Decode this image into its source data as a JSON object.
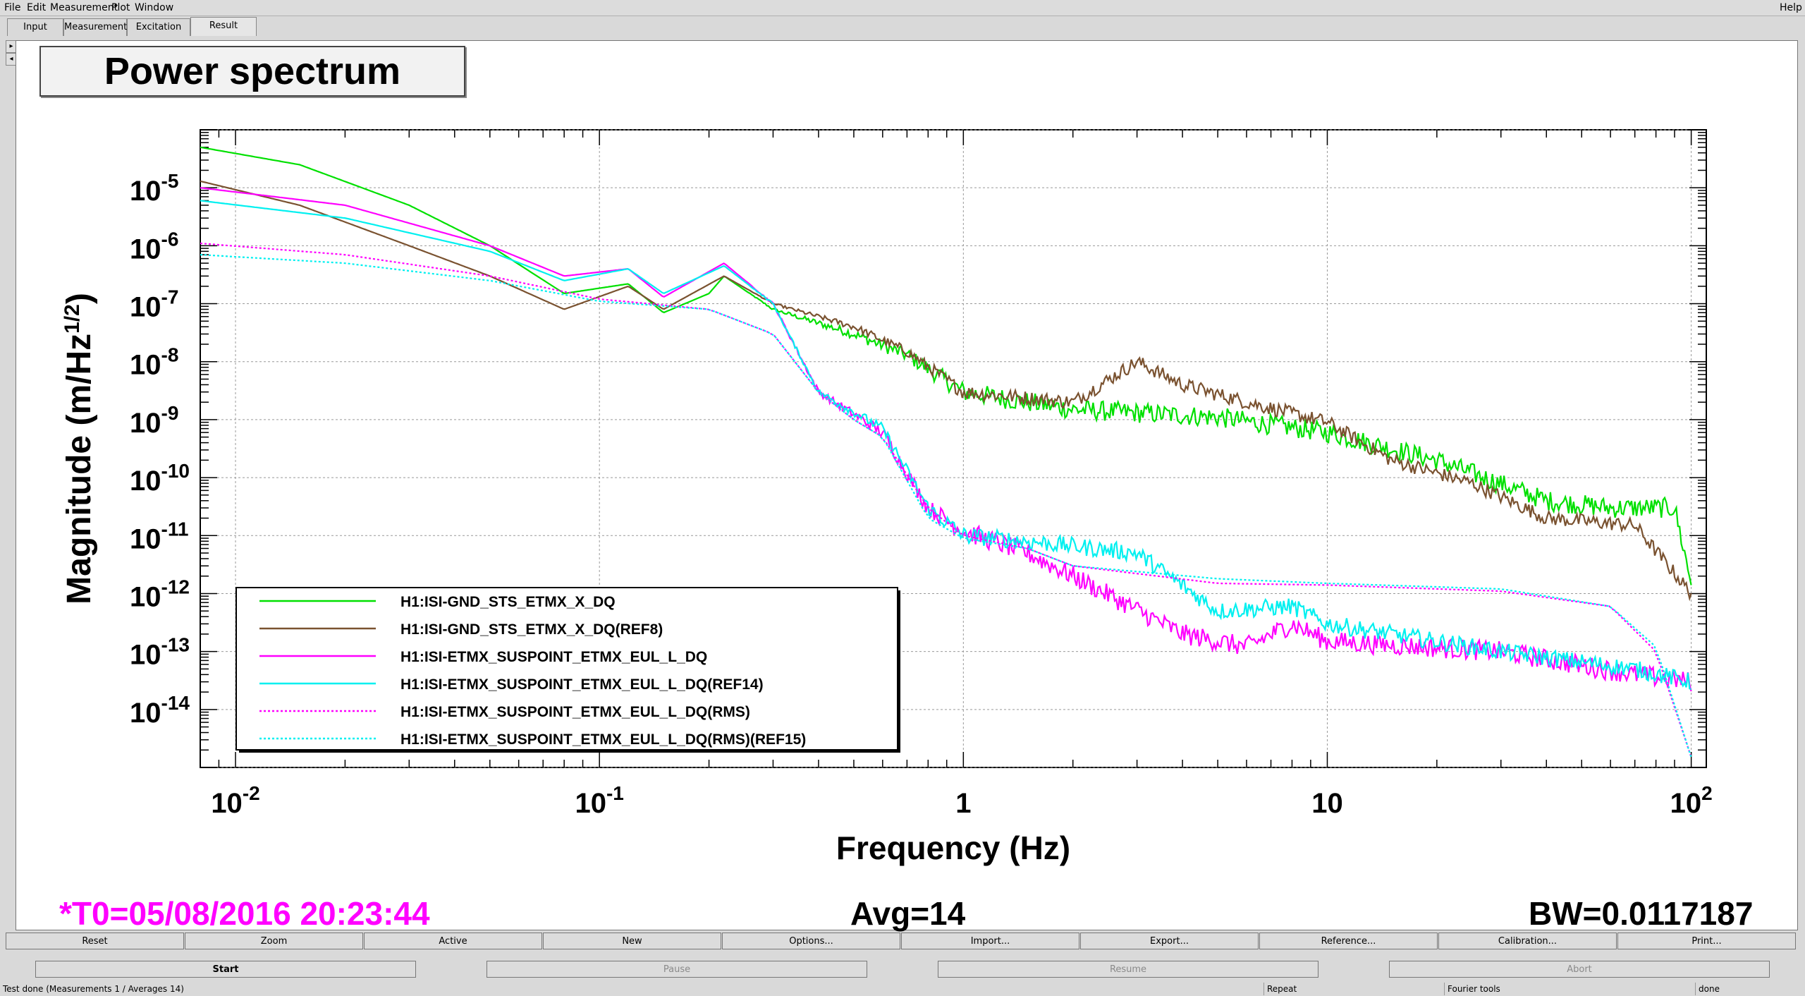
{
  "menu": {
    "file": "File",
    "edit": "Edit",
    "measurement": "Measurement",
    "plot": "Plot",
    "window": "Window",
    "help": "Help"
  },
  "tabs": [
    "Input",
    "Measurement",
    "Excitation",
    "Result"
  ],
  "panel_title": "Power spectrum",
  "footer": {
    "t0": "*T0=05/08/2016 20:23:44",
    "avg": "Avg=14",
    "bw": "BW=0.0117187"
  },
  "toolbar": [
    "Reset",
    "Zoom",
    "Active",
    "New",
    "Options...",
    "Import...",
    "Export...",
    "Reference...",
    "Calibration...",
    "Print..."
  ],
  "controls": {
    "start": "Start",
    "pause": "Pause",
    "resume": "Resume",
    "abort": "Abort"
  },
  "status": {
    "message": "Test done (Measurements 1 / Averages 14)",
    "repeat": "Repeat",
    "tools": "Fourier tools",
    "state": "done"
  },
  "colors": {
    "green": "#00e000",
    "brown": "#7a5230",
    "magenta": "#ff00ff",
    "cyan": "#00f0f0",
    "t0": "#ff00ff"
  },
  "chart_data": {
    "type": "line",
    "xlabel": "Frequency (Hz)",
    "ylabel": "Magnitude (m/Hz^1/2)",
    "xscale": "log",
    "yscale": "log",
    "xlim": [
      0.008,
      110
    ],
    "ylim": [
      1e-15,
      0.0001
    ],
    "grid": true,
    "legend_position": "bottom-left",
    "x_ticks": [
      {
        "v": 0.01,
        "b": "10",
        "e": "-2"
      },
      {
        "v": 0.1,
        "b": "10",
        "e": "-1"
      },
      {
        "v": 1,
        "b": "1",
        "e": ""
      },
      {
        "v": 10,
        "b": "10",
        "e": ""
      },
      {
        "v": 100,
        "b": "10",
        "e": "2"
      }
    ],
    "y_ticks": [
      {
        "v": 1e-05,
        "b": "10",
        "e": "-5"
      },
      {
        "v": 1e-06,
        "b": "10",
        "e": "-6"
      },
      {
        "v": 1e-07,
        "b": "10",
        "e": "-7"
      },
      {
        "v": 1e-08,
        "b": "10",
        "e": "-8"
      },
      {
        "v": 1e-09,
        "b": "10",
        "e": "-9"
      },
      {
        "v": 1e-10,
        "b": "10",
        "e": "-10"
      },
      {
        "v": 1e-11,
        "b": "10",
        "e": "-11"
      },
      {
        "v": 1e-12,
        "b": "10",
        "e": "-12"
      },
      {
        "v": 1e-13,
        "b": "10",
        "e": "-13"
      },
      {
        "v": 1e-14,
        "b": "10",
        "e": "-14"
      }
    ],
    "series": [
      {
        "name": "H1:ISI-GND_STS_ETMX_X_DQ",
        "color": "#00e000",
        "dash": false,
        "noise": 0.35,
        "points": [
          [
            0.008,
            5e-05
          ],
          [
            0.015,
            2.5e-05
          ],
          [
            0.03,
            5e-06
          ],
          [
            0.05,
            1e-06
          ],
          [
            0.08,
            1.5e-07
          ],
          [
            0.12,
            2.2e-07
          ],
          [
            0.15,
            7e-08
          ],
          [
            0.2,
            1.5e-07
          ],
          [
            0.22,
            3e-07
          ],
          [
            0.3,
            8e-08
          ],
          [
            0.5,
            3e-08
          ],
          [
            0.7,
            1.3e-08
          ],
          [
            1,
            3e-09
          ],
          [
            2,
            1.5e-09
          ],
          [
            5,
            1.1e-09
          ],
          [
            10,
            6e-10
          ],
          [
            20,
            2e-10
          ],
          [
            40,
            4e-11
          ],
          [
            60,
            3e-11
          ],
          [
            90,
            3e-11
          ],
          [
            100,
            1.5e-12
          ]
        ]
      },
      {
        "name": "H1:ISI-GND_STS_ETMX_X_DQ(REF8)",
        "color": "#7a5230",
        "dash": false,
        "noise": 0.25,
        "points": [
          [
            0.008,
            1.3e-05
          ],
          [
            0.015,
            5e-06
          ],
          [
            0.03,
            1e-06
          ],
          [
            0.05,
            3e-07
          ],
          [
            0.08,
            8e-08
          ],
          [
            0.12,
            2e-07
          ],
          [
            0.15,
            8e-08
          ],
          [
            0.22,
            3e-07
          ],
          [
            0.3,
            1e-07
          ],
          [
            0.5,
            4e-08
          ],
          [
            0.7,
            1.5e-08
          ],
          [
            1,
            3e-09
          ],
          [
            2,
            2e-09
          ],
          [
            3,
            1e-08
          ],
          [
            4,
            4e-09
          ],
          [
            6,
            2e-09
          ],
          [
            10,
            9e-10
          ],
          [
            15,
            2e-10
          ],
          [
            25,
            8e-11
          ],
          [
            40,
            2e-11
          ],
          [
            70,
            1.5e-11
          ],
          [
            100,
            1e-12
          ]
        ]
      },
      {
        "name": "H1:ISI-ETMX_SUSPOINT_ETMX_EUL_L_DQ",
        "color": "#ff00ff",
        "dash": false,
        "noise": 0.35,
        "points": [
          [
            0.008,
            1e-05
          ],
          [
            0.02,
            5e-06
          ],
          [
            0.05,
            1e-06
          ],
          [
            0.08,
            3e-07
          ],
          [
            0.12,
            4e-07
          ],
          [
            0.15,
            1.3e-07
          ],
          [
            0.22,
            5e-07
          ],
          [
            0.3,
            1e-07
          ],
          [
            0.4,
            3e-09
          ],
          [
            0.6,
            6e-10
          ],
          [
            0.8,
            3e-11
          ],
          [
            1,
            1.2e-11
          ],
          [
            1.5,
            5e-12
          ],
          [
            2,
            2e-12
          ],
          [
            4,
            2e-13
          ],
          [
            6,
            1.2e-13
          ],
          [
            8,
            3e-13
          ],
          [
            10,
            1.5e-13
          ],
          [
            30,
            1e-13
          ],
          [
            70,
            4e-14
          ],
          [
            100,
            3e-14
          ]
        ]
      },
      {
        "name": "H1:ISI-ETMX_SUSPOINT_ETMX_EUL_L_DQ(REF14)",
        "color": "#00f0f0",
        "dash": false,
        "noise": 0.3,
        "points": [
          [
            0.008,
            6e-06
          ],
          [
            0.02,
            3e-06
          ],
          [
            0.05,
            8e-07
          ],
          [
            0.08,
            2.5e-07
          ],
          [
            0.12,
            4e-07
          ],
          [
            0.15,
            1.5e-07
          ],
          [
            0.22,
            4.5e-07
          ],
          [
            0.3,
            1e-07
          ],
          [
            0.4,
            3e-09
          ],
          [
            0.6,
            7e-10
          ],
          [
            0.8,
            3e-11
          ],
          [
            1,
            1e-11
          ],
          [
            1.5,
            8e-12
          ],
          [
            3,
            5e-12
          ],
          [
            5,
            5e-13
          ],
          [
            8,
            6e-13
          ],
          [
            10,
            3e-13
          ],
          [
            30,
            1e-13
          ],
          [
            70,
            5e-14
          ],
          [
            100,
            3e-14
          ]
        ]
      },
      {
        "name": "H1:ISI-ETMX_SUSPOINT_ETMX_EUL_L_DQ(RMS)",
        "color": "#ff00ff",
        "dash": true,
        "noise": 0,
        "points": [
          [
            0.008,
            1.1e-06
          ],
          [
            0.02,
            7e-07
          ],
          [
            0.05,
            3e-07
          ],
          [
            0.1,
            1.2e-07
          ],
          [
            0.2,
            8e-08
          ],
          [
            0.3,
            3e-08
          ],
          [
            0.4,
            3e-09
          ],
          [
            0.5,
            1e-09
          ],
          [
            0.6,
            5e-10
          ],
          [
            0.8,
            3e-11
          ],
          [
            1,
            1e-11
          ],
          [
            1.5,
            6e-12
          ],
          [
            2,
            3e-12
          ],
          [
            5,
            1.5e-12
          ],
          [
            10,
            1.4e-12
          ],
          [
            30,
            1.1e-12
          ],
          [
            60,
            6e-13
          ],
          [
            80,
            1e-13
          ],
          [
            100,
            1.5e-15
          ]
        ]
      },
      {
        "name": "H1:ISI-ETMX_SUSPOINT_ETMX_EUL_L_DQ(RMS)(REF15)",
        "color": "#00f0f0",
        "dash": true,
        "noise": 0,
        "points": [
          [
            0.008,
            7e-07
          ],
          [
            0.02,
            5e-07
          ],
          [
            0.05,
            2.5e-07
          ],
          [
            0.1,
            1.1e-07
          ],
          [
            0.2,
            8e-08
          ],
          [
            0.3,
            3e-08
          ],
          [
            0.4,
            3e-09
          ],
          [
            0.5,
            1e-09
          ],
          [
            0.6,
            5e-10
          ],
          [
            0.8,
            2e-11
          ],
          [
            1,
            9e-12
          ],
          [
            1.5,
            6e-12
          ],
          [
            2,
            3e-12
          ],
          [
            5,
            1.8e-12
          ],
          [
            10,
            1.5e-12
          ],
          [
            30,
            1.2e-12
          ],
          [
            60,
            6e-13
          ],
          [
            80,
            1.2e-13
          ],
          [
            100,
            1.5e-15
          ]
        ]
      }
    ]
  }
}
